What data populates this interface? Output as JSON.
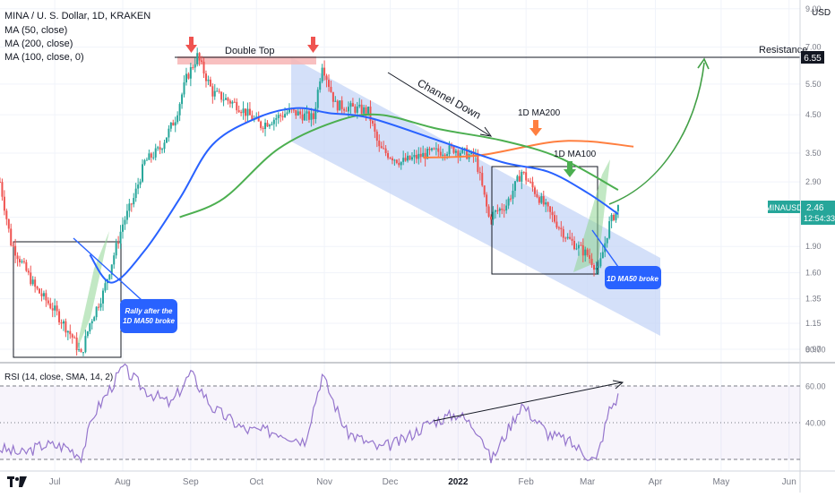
{
  "header": {
    "symbol_line": "MINA / U. S. Dollar, 1D, KRAKEN",
    "ma50": "MA (50, close)",
    "ma200": "MA (200, close)",
    "ma100": "MA (100, close, 0)"
  },
  "price_scale": {
    "currency": "USD",
    "ticks": [
      "9.00",
      "7.00",
      "5.50",
      "4.50",
      "3.50",
      "2.90",
      "2.30",
      "1.90",
      "1.60",
      "1.35",
      "1.15",
      "0.97"
    ],
    "resistance_tag": "6.55",
    "last_tag": "2.46",
    "last_time": "12:54:33",
    "symbol_tag": "MINAUSD"
  },
  "rsi": {
    "label": "RSI (14, close, SMA, 14, 2)",
    "ticks": [
      "80.00",
      "60.00",
      "40.00"
    ]
  },
  "time_axis": [
    "Jul",
    "Aug",
    "Sep",
    "Oct",
    "Nov",
    "Dec",
    "2022",
    "Feb",
    "Mar",
    "Apr",
    "May",
    "Jun"
  ],
  "annotations": {
    "double_top": "Double Top",
    "resistance": "Resistance",
    "channel_down": "Channel Down",
    "ma200_label": "1D MA200",
    "ma100_label": "1D MA100",
    "callout_left": [
      "Rally after the",
      "1D MA50 broke"
    ],
    "callout_right": "1D MA50 broke"
  },
  "colors": {
    "up": "#26a69a",
    "down": "#ef5350",
    "ma50": "#2962ff",
    "ma100": "#4caf50",
    "ma200": "#ff7f3f",
    "channel": "#c5d5f7",
    "rsi": "#9575cd",
    "callout": "#2962ff",
    "resistance_zone": "#f7b5b5"
  },
  "chart_data": {
    "type": "candlestick",
    "title": "MINA / U. S. Dollar, 1D, KRAKEN",
    "x_range": [
      "2021-06-15",
      "2022-06-15"
    ],
    "ylim": [
      0.9,
      9.0
    ],
    "y_scale": "log",
    "resistance": 6.55,
    "last_price": 2.46,
    "price_path": [
      {
        "date": "2021-06-15",
        "close": 2.9
      },
      {
        "date": "2021-06-20",
        "close": 1.95
      },
      {
        "date": "2021-07-01",
        "close": 1.45
      },
      {
        "date": "2021-07-10",
        "close": 1.25
      },
      {
        "date": "2021-07-18",
        "close": 1.05
      },
      {
        "date": "2021-07-22",
        "close": 0.93
      },
      {
        "date": "2021-07-26",
        "close": 1.15
      },
      {
        "date": "2021-08-01",
        "close": 1.4
      },
      {
        "date": "2021-08-06",
        "close": 1.8
      },
      {
        "date": "2021-08-10",
        "close": 2.2
      },
      {
        "date": "2021-08-15",
        "close": 2.6
      },
      {
        "date": "2021-08-20",
        "close": 3.3
      },
      {
        "date": "2021-08-27",
        "close": 3.6
      },
      {
        "date": "2021-09-03",
        "close": 4.4
      },
      {
        "date": "2021-09-08",
        "close": 5.7
      },
      {
        "date": "2021-09-13",
        "close": 6.6
      },
      {
        "date": "2021-09-20",
        "close": 5.2
      },
      {
        "date": "2021-10-01",
        "close": 4.8
      },
      {
        "date": "2021-10-12",
        "close": 4.2
      },
      {
        "date": "2021-10-25",
        "close": 4.6
      },
      {
        "date": "2021-11-05",
        "close": 4.4
      },
      {
        "date": "2021-11-09",
        "close": 6.3
      },
      {
        "date": "2021-11-15",
        "close": 4.8
      },
      {
        "date": "2021-11-30",
        "close": 4.6
      },
      {
        "date": "2021-12-05",
        "close": 3.6
      },
      {
        "date": "2021-12-15",
        "close": 3.3
      },
      {
        "date": "2021-12-28",
        "close": 3.5
      },
      {
        "date": "2022-01-08",
        "close": 3.6
      },
      {
        "date": "2022-01-18",
        "close": 3.4
      },
      {
        "date": "2022-01-24",
        "close": 2.3
      },
      {
        "date": "2022-02-01",
        "close": 2.5
      },
      {
        "date": "2022-02-08",
        "close": 3.1
      },
      {
        "date": "2022-02-20",
        "close": 2.4
      },
      {
        "date": "2022-03-01",
        "close": 2.0
      },
      {
        "date": "2022-03-10",
        "close": 1.8
      },
      {
        "date": "2022-03-15",
        "close": 1.62
      },
      {
        "date": "2022-03-20",
        "close": 2.2
      },
      {
        "date": "2022-03-24",
        "close": 2.46
      }
    ],
    "ma50": [
      {
        "date": "2021-07-26",
        "value": 1.8
      },
      {
        "date": "2021-08-05",
        "value": 1.5
      },
      {
        "date": "2021-08-20",
        "value": 1.85
      },
      {
        "date": "2021-09-05",
        "value": 2.6
      },
      {
        "date": "2021-09-20",
        "value": 3.7
      },
      {
        "date": "2021-10-10",
        "value": 4.4
      },
      {
        "date": "2021-10-28",
        "value": 4.7
      },
      {
        "date": "2021-11-12",
        "value": 4.55
      },
      {
        "date": "2021-12-01",
        "value": 4.4
      },
      {
        "date": "2022-01-01",
        "value": 3.8
      },
      {
        "date": "2022-01-30",
        "value": 3.3
      },
      {
        "date": "2022-02-20",
        "value": 3.1
      },
      {
        "date": "2022-03-10",
        "value": 2.7
      },
      {
        "date": "2022-03-24",
        "value": 2.35
      }
    ],
    "ma100": [
      {
        "date": "2021-09-05",
        "value": 2.3
      },
      {
        "date": "2021-09-25",
        "value": 2.6
      },
      {
        "date": "2021-10-20",
        "value": 3.6
      },
      {
        "date": "2021-11-15",
        "value": 4.3
      },
      {
        "date": "2021-12-05",
        "value": 4.5
      },
      {
        "date": "2022-01-01",
        "value": 4.1
      },
      {
        "date": "2022-01-30",
        "value": 3.8
      },
      {
        "date": "2022-02-25",
        "value": 3.4
      },
      {
        "date": "2022-03-24",
        "value": 2.75
      }
    ],
    "ma200": [
      {
        "date": "2021-12-25",
        "value": 3.4
      },
      {
        "date": "2022-01-20",
        "value": 3.45
      },
      {
        "date": "2022-02-20",
        "value": 3.75
      },
      {
        "date": "2022-03-10",
        "value": 3.78
      },
      {
        "date": "2022-03-31",
        "value": 3.65
      }
    ],
    "rsi_series": [
      {
        "date": "2021-06-15",
        "value": 36
      },
      {
        "date": "2021-06-25",
        "value": 33
      },
      {
        "date": "2021-07-05",
        "value": 38
      },
      {
        "date": "2021-07-15",
        "value": 37
      },
      {
        "date": "2021-07-22",
        "value": 32
      },
      {
        "date": "2021-07-28",
        "value": 55
      },
      {
        "date": "2021-08-05",
        "value": 70
      },
      {
        "date": "2021-08-10",
        "value": 80
      },
      {
        "date": "2021-08-20",
        "value": 68
      },
      {
        "date": "2021-09-01",
        "value": 60
      },
      {
        "date": "2021-09-10",
        "value": 77
      },
      {
        "date": "2021-09-20",
        "value": 58
      },
      {
        "date": "2021-10-05",
        "value": 46
      },
      {
        "date": "2021-10-20",
        "value": 45
      },
      {
        "date": "2021-11-01",
        "value": 40
      },
      {
        "date": "2021-11-09",
        "value": 76
      },
      {
        "date": "2021-11-20",
        "value": 45
      },
      {
        "date": "2021-12-05",
        "value": 36
      },
      {
        "date": "2021-12-15",
        "value": 40
      },
      {
        "date": "2021-12-28",
        "value": 50
      },
      {
        "date": "2022-01-10",
        "value": 55
      },
      {
        "date": "2022-01-20",
        "value": 45
      },
      {
        "date": "2022-01-25",
        "value": 29
      },
      {
        "date": "2022-02-08",
        "value": 60
      },
      {
        "date": "2022-02-20",
        "value": 44
      },
      {
        "date": "2022-03-01",
        "value": 40
      },
      {
        "date": "2022-03-14",
        "value": 29
      },
      {
        "date": "2022-03-20",
        "value": 57
      },
      {
        "date": "2022-03-24",
        "value": 64
      }
    ],
    "rsi_ylim": [
      25,
      85
    ]
  }
}
